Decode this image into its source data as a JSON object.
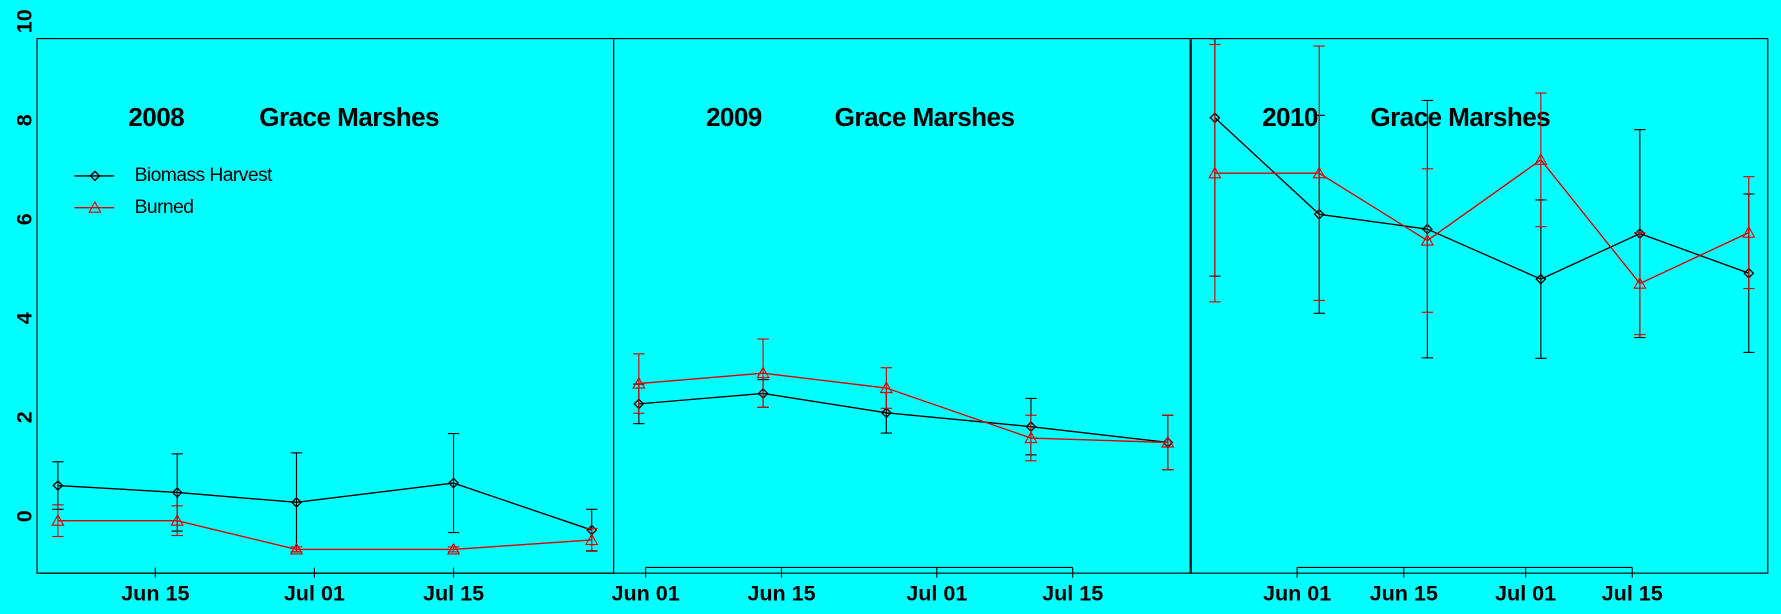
{
  "chart_data": [
    {
      "type": "line",
      "title": "2008",
      "subtitle": "Grace Marshes",
      "xlim": [
        154.1,
        212.1
      ],
      "xticks": [
        {
          "value": 166,
          "label": "Jun 15"
        },
        {
          "value": 182,
          "label": "Jul 01"
        },
        {
          "value": 196,
          "label": "Jul 15"
        }
      ],
      "ylim": [
        -1.15,
        9.65
      ],
      "yticks": [
        0,
        2,
        4,
        6,
        8,
        10
      ],
      "legend": "upper left",
      "x": [
        156.2,
        168.2,
        180.2,
        196,
        209.9
      ],
      "series": [
        {
          "name": "Biomass Harvest",
          "color": "#000000",
          "marker": "diamond",
          "values": [
            0.62,
            0.48,
            0.28,
            0.67,
            -0.28
          ],
          "errors": [
            0.48,
            0.78,
            1.0,
            1.0,
            0.42
          ]
        },
        {
          "name": "Burned",
          "color": "#e00000",
          "marker": "triangle",
          "values": [
            -0.09,
            -0.09,
            -0.67,
            -0.67,
            -0.48
          ],
          "errors": [
            0.32,
            0.3,
            0.05,
            0.05,
            0.23
          ]
        }
      ]
    },
    {
      "type": "line",
      "title": "2009",
      "subtitle": "Grace Marshes",
      "xlim": [
        148.7,
        208.1
      ],
      "xticks": [
        {
          "value": 152,
          "label": "Jun 01"
        },
        {
          "value": 166,
          "label": "Jun 15"
        },
        {
          "value": 182,
          "label": "Jul 01"
        },
        {
          "value": 196,
          "label": "Jul 15"
        }
      ],
      "ylim": [
        -1.15,
        9.65
      ],
      "x": [
        151.3,
        164.1,
        176.8,
        191.7,
        205.8
      ],
      "series": [
        {
          "name": "Biomass Harvest",
          "color": "#000000",
          "marker": "diamond",
          "values": [
            2.27,
            2.48,
            2.09,
            1.81,
            1.49
          ],
          "errors": [
            0.4,
            0.28,
            0.41,
            0.57,
            0.55
          ]
        },
        {
          "name": "Burned",
          "color": "#e00000",
          "marker": "triangle",
          "values": [
            2.68,
            2.89,
            2.59,
            1.58,
            1.49
          ],
          "errors": [
            0.6,
            0.69,
            0.41,
            0.46,
            0.55
          ]
        }
      ]
    },
    {
      "type": "line",
      "title": "2010",
      "subtitle": "Grace Marshes",
      "xlim": [
        138.1,
        213.8
      ],
      "xticks": [
        {
          "value": 152,
          "label": "Jun 01"
        },
        {
          "value": 166,
          "label": "Jun 15"
        },
        {
          "value": 182,
          "label": "Jul 01"
        },
        {
          "value": 196,
          "label": "Jul 15"
        }
      ],
      "ylim": [
        -1.15,
        9.65
      ],
      "x": [
        141.2,
        154.9,
        169.1,
        184.0,
        197.0,
        211.3
      ],
      "series": [
        {
          "name": "Biomass Harvest",
          "color": "#000000",
          "marker": "diamond",
          "values": [
            8.05,
            6.1,
            5.8,
            4.79,
            5.71,
            4.91
          ],
          "errors": [
            3.2,
            2.0,
            2.6,
            1.6,
            2.1,
            1.6
          ]
        },
        {
          "name": "Burned",
          "color": "#e00000",
          "marker": "triangle",
          "values": [
            6.93,
            6.93,
            5.57,
            7.2,
            4.7,
            5.73
          ],
          "errors": [
            2.6,
            2.57,
            1.45,
            1.35,
            1.03,
            1.13
          ]
        }
      ]
    }
  ]
}
